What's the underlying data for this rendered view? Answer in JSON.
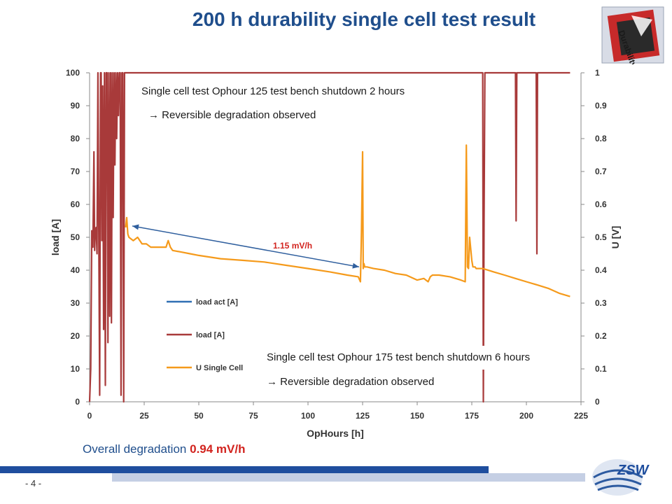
{
  "slide": {
    "title": "200 h durability single cell test result",
    "page_number": "- 4 -",
    "overall_label": "Overall degradation",
    "overall_value": "0.94 mV/h",
    "logo_text": "ZSW",
    "badge_text": "Durability"
  },
  "annotations": {
    "top_line1": "Single cell test Ophour 125 test bench shutdown 2 hours",
    "top_line2": "→ Reversible degradation observed",
    "bottom_line1": "Single cell test Ophour 175 test bench shutdown 6 hours",
    "bottom_line2": "→ Reversible degradation observed",
    "arrow_label": "1.15 mV/h",
    "arrow_from": [
      17,
      0.53
    ],
    "arrow_to": [
      124,
      0.41
    ]
  },
  "chart_data": {
    "type": "line",
    "xlabel": "OpHours [h]",
    "ylabel": "load [A]",
    "y2label": "U [V]",
    "xlim": [
      0,
      225
    ],
    "ylim": [
      0,
      100
    ],
    "y2lim": [
      0,
      1
    ],
    "xticks": [
      0,
      25,
      50,
      75,
      100,
      125,
      150,
      175,
      200,
      225
    ],
    "yticks": [
      0,
      10,
      20,
      30,
      40,
      50,
      60,
      70,
      80,
      90,
      100
    ],
    "y2ticks": [
      0,
      0.1,
      0.2,
      0.3,
      0.4,
      0.5,
      0.6,
      0.7,
      0.8,
      0.9,
      1
    ],
    "grid": false,
    "legend_position": "center-left",
    "colors": {
      "load_act": "#2f6fb3",
      "load": "#a83a3a",
      "u_cell": "#f59a1b",
      "arrow": "#2f5f9e",
      "arrow_label": "#d2231e"
    },
    "series": [
      {
        "name": "load act [A]",
        "axis": "y",
        "x": [],
        "y": []
      },
      {
        "name": "load [A]",
        "axis": "y",
        "x": [
          0,
          0.5,
          1,
          1.5,
          2,
          2.3,
          2.6,
          3,
          3.4,
          3.8,
          4.2,
          4.6,
          5,
          5.3,
          5.6,
          6,
          6.4,
          6.8,
          7.2,
          7.6,
          8,
          8.4,
          8.8,
          9.2,
          9.6,
          10,
          10.4,
          10.8,
          11.2,
          11.6,
          12,
          12.4,
          12.8,
          13.2,
          13.6,
          14,
          14.4,
          14.8,
          15.2,
          15.6,
          16,
          16.4,
          16.8,
          17.2,
          17.6,
          18,
          60,
          120,
          178,
          179.5,
          180,
          180.3,
          180.6,
          181,
          195,
          195.3,
          195.6,
          196,
          204.5,
          204.8,
          205.1,
          205.5,
          220
        ],
        "y": [
          0,
          10,
          52,
          47,
          76,
          46,
          52,
          53,
          45,
          100,
          53,
          2,
          100,
          100,
          49,
          96,
          22,
          100,
          5,
          100,
          100,
          18,
          100,
          26,
          100,
          24,
          100,
          56,
          100,
          72,
          100,
          80,
          100,
          87,
          100,
          100,
          2,
          100,
          100,
          0,
          100,
          100,
          100,
          100,
          100,
          100,
          100,
          100,
          100,
          100,
          100,
          0,
          55,
          100,
          100,
          55,
          100,
          100,
          100,
          45,
          100,
          100,
          100
        ]
      },
      {
        "name": "U Single Cell",
        "axis": "y2",
        "x": [
          16.5,
          17,
          17.5,
          18,
          20,
          22,
          24,
          26,
          28,
          30,
          33,
          35,
          36,
          37,
          38,
          42,
          46,
          50,
          60,
          70,
          80,
          90,
          100,
          110,
          118,
          123,
          124,
          124.5,
          125,
          125.3,
          125.6,
          126,
          127,
          130,
          135,
          140,
          145,
          150,
          153,
          154,
          155,
          156,
          157,
          160,
          165,
          170,
          172,
          172.5,
          173,
          173.5,
          174,
          175,
          175.5,
          176,
          176.5,
          177,
          180,
          185,
          190,
          195,
          200,
          205,
          210,
          215,
          220
        ],
        "y": [
          0.53,
          0.56,
          0.51,
          0.5,
          0.49,
          0.5,
          0.48,
          0.48,
          0.47,
          0.47,
          0.47,
          0.47,
          0.49,
          0.47,
          0.46,
          0.455,
          0.45,
          0.445,
          0.435,
          0.43,
          0.425,
          0.415,
          0.405,
          0.395,
          0.385,
          0.38,
          0.365,
          0.52,
          0.76,
          0.405,
          0.42,
          0.41,
          0.41,
          0.405,
          0.4,
          0.39,
          0.385,
          0.37,
          0.375,
          0.37,
          0.365,
          0.38,
          0.385,
          0.385,
          0.38,
          0.37,
          0.365,
          0.78,
          0.41,
          0.405,
          0.5,
          0.43,
          0.41,
          0.41,
          0.41,
          0.405,
          0.405,
          0.395,
          0.385,
          0.375,
          0.365,
          0.355,
          0.345,
          0.33,
          0.32
        ]
      }
    ]
  }
}
